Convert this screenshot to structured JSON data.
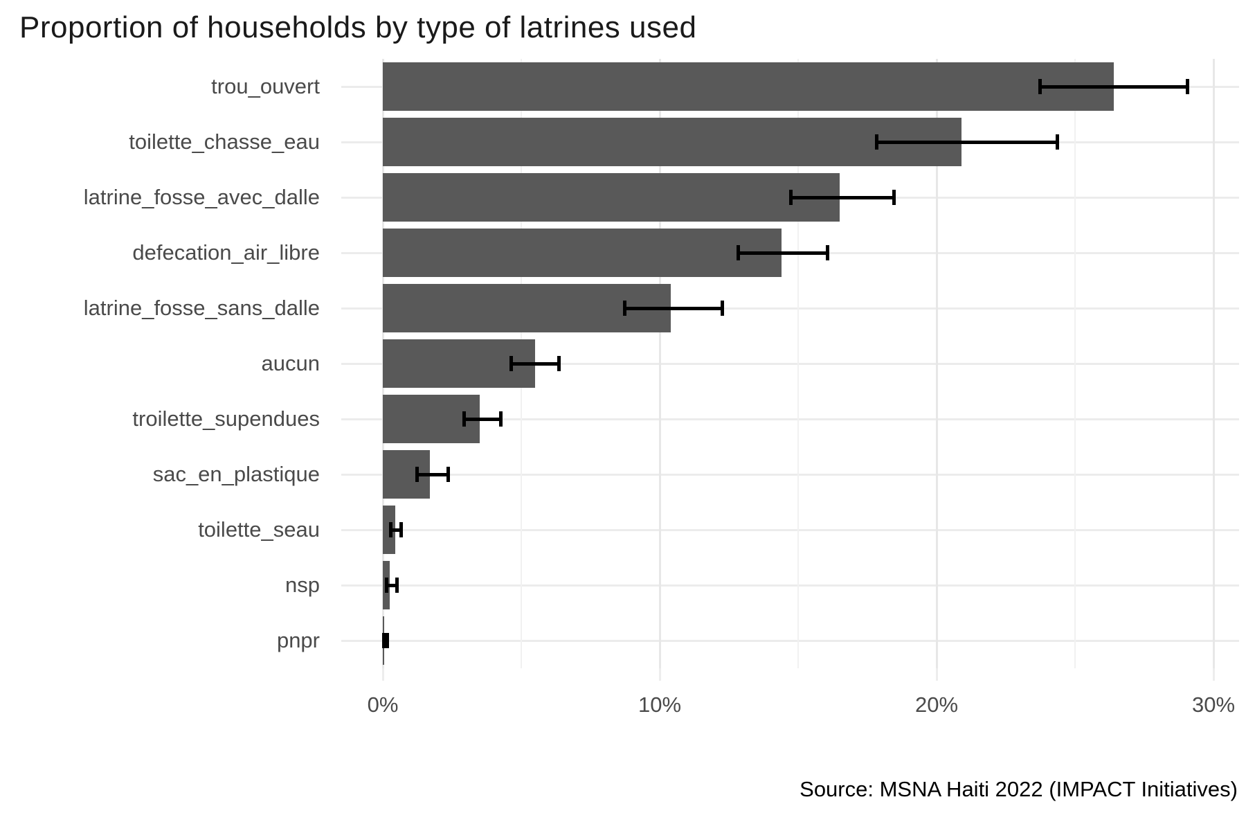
{
  "title": "Proportion of households by type of latrines used",
  "caption": "Source: MSNA Haiti 2022 (IMPACT Initiatives)",
  "colors": {
    "bar": "#595959",
    "error_bar": "#000000",
    "grid_major": "#e7e7e7",
    "grid_minor": "#f1f1f1",
    "axis_text": "#4a4a4a",
    "title_text": "#1a1a1a",
    "background": "#ffffff"
  },
  "chart_data": {
    "type": "bar",
    "orientation": "horizontal",
    "title": "Proportion of households by type of latrines used",
    "xlabel": "",
    "ylabel": "",
    "xlim": [
      0,
      31
    ],
    "x_ticks": [
      0,
      10,
      20,
      30
    ],
    "x_tick_labels": [
      "0%",
      "10%",
      "20%",
      "30%"
    ],
    "x_minor_ticks": [
      5,
      15,
      25
    ],
    "grid": true,
    "legend_position": "none",
    "error_bars": true,
    "categories": [
      "trou_ouvert",
      "toilette_chasse_eau",
      "latrine_fosse_avec_dalle",
      "defecation_air_libre",
      "latrine_fosse_sans_dalle",
      "aucun",
      "troilette_supendues",
      "sac_en_plastique",
      "toilette_seau",
      "nsp",
      "pnpr"
    ],
    "values": [
      26.4,
      20.9,
      16.5,
      14.4,
      10.4,
      5.5,
      3.5,
      1.7,
      0.45,
      0.25,
      0.05
    ],
    "error_low": [
      23.7,
      17.8,
      14.7,
      12.8,
      8.7,
      4.6,
      2.9,
      1.2,
      0.25,
      0.1,
      0.0
    ],
    "error_high": [
      29.1,
      24.4,
      18.5,
      16.1,
      12.3,
      6.4,
      4.3,
      2.4,
      0.7,
      0.55,
      0.2
    ],
    "source": "Source: MSNA Haiti 2022 (IMPACT Initiatives)"
  }
}
